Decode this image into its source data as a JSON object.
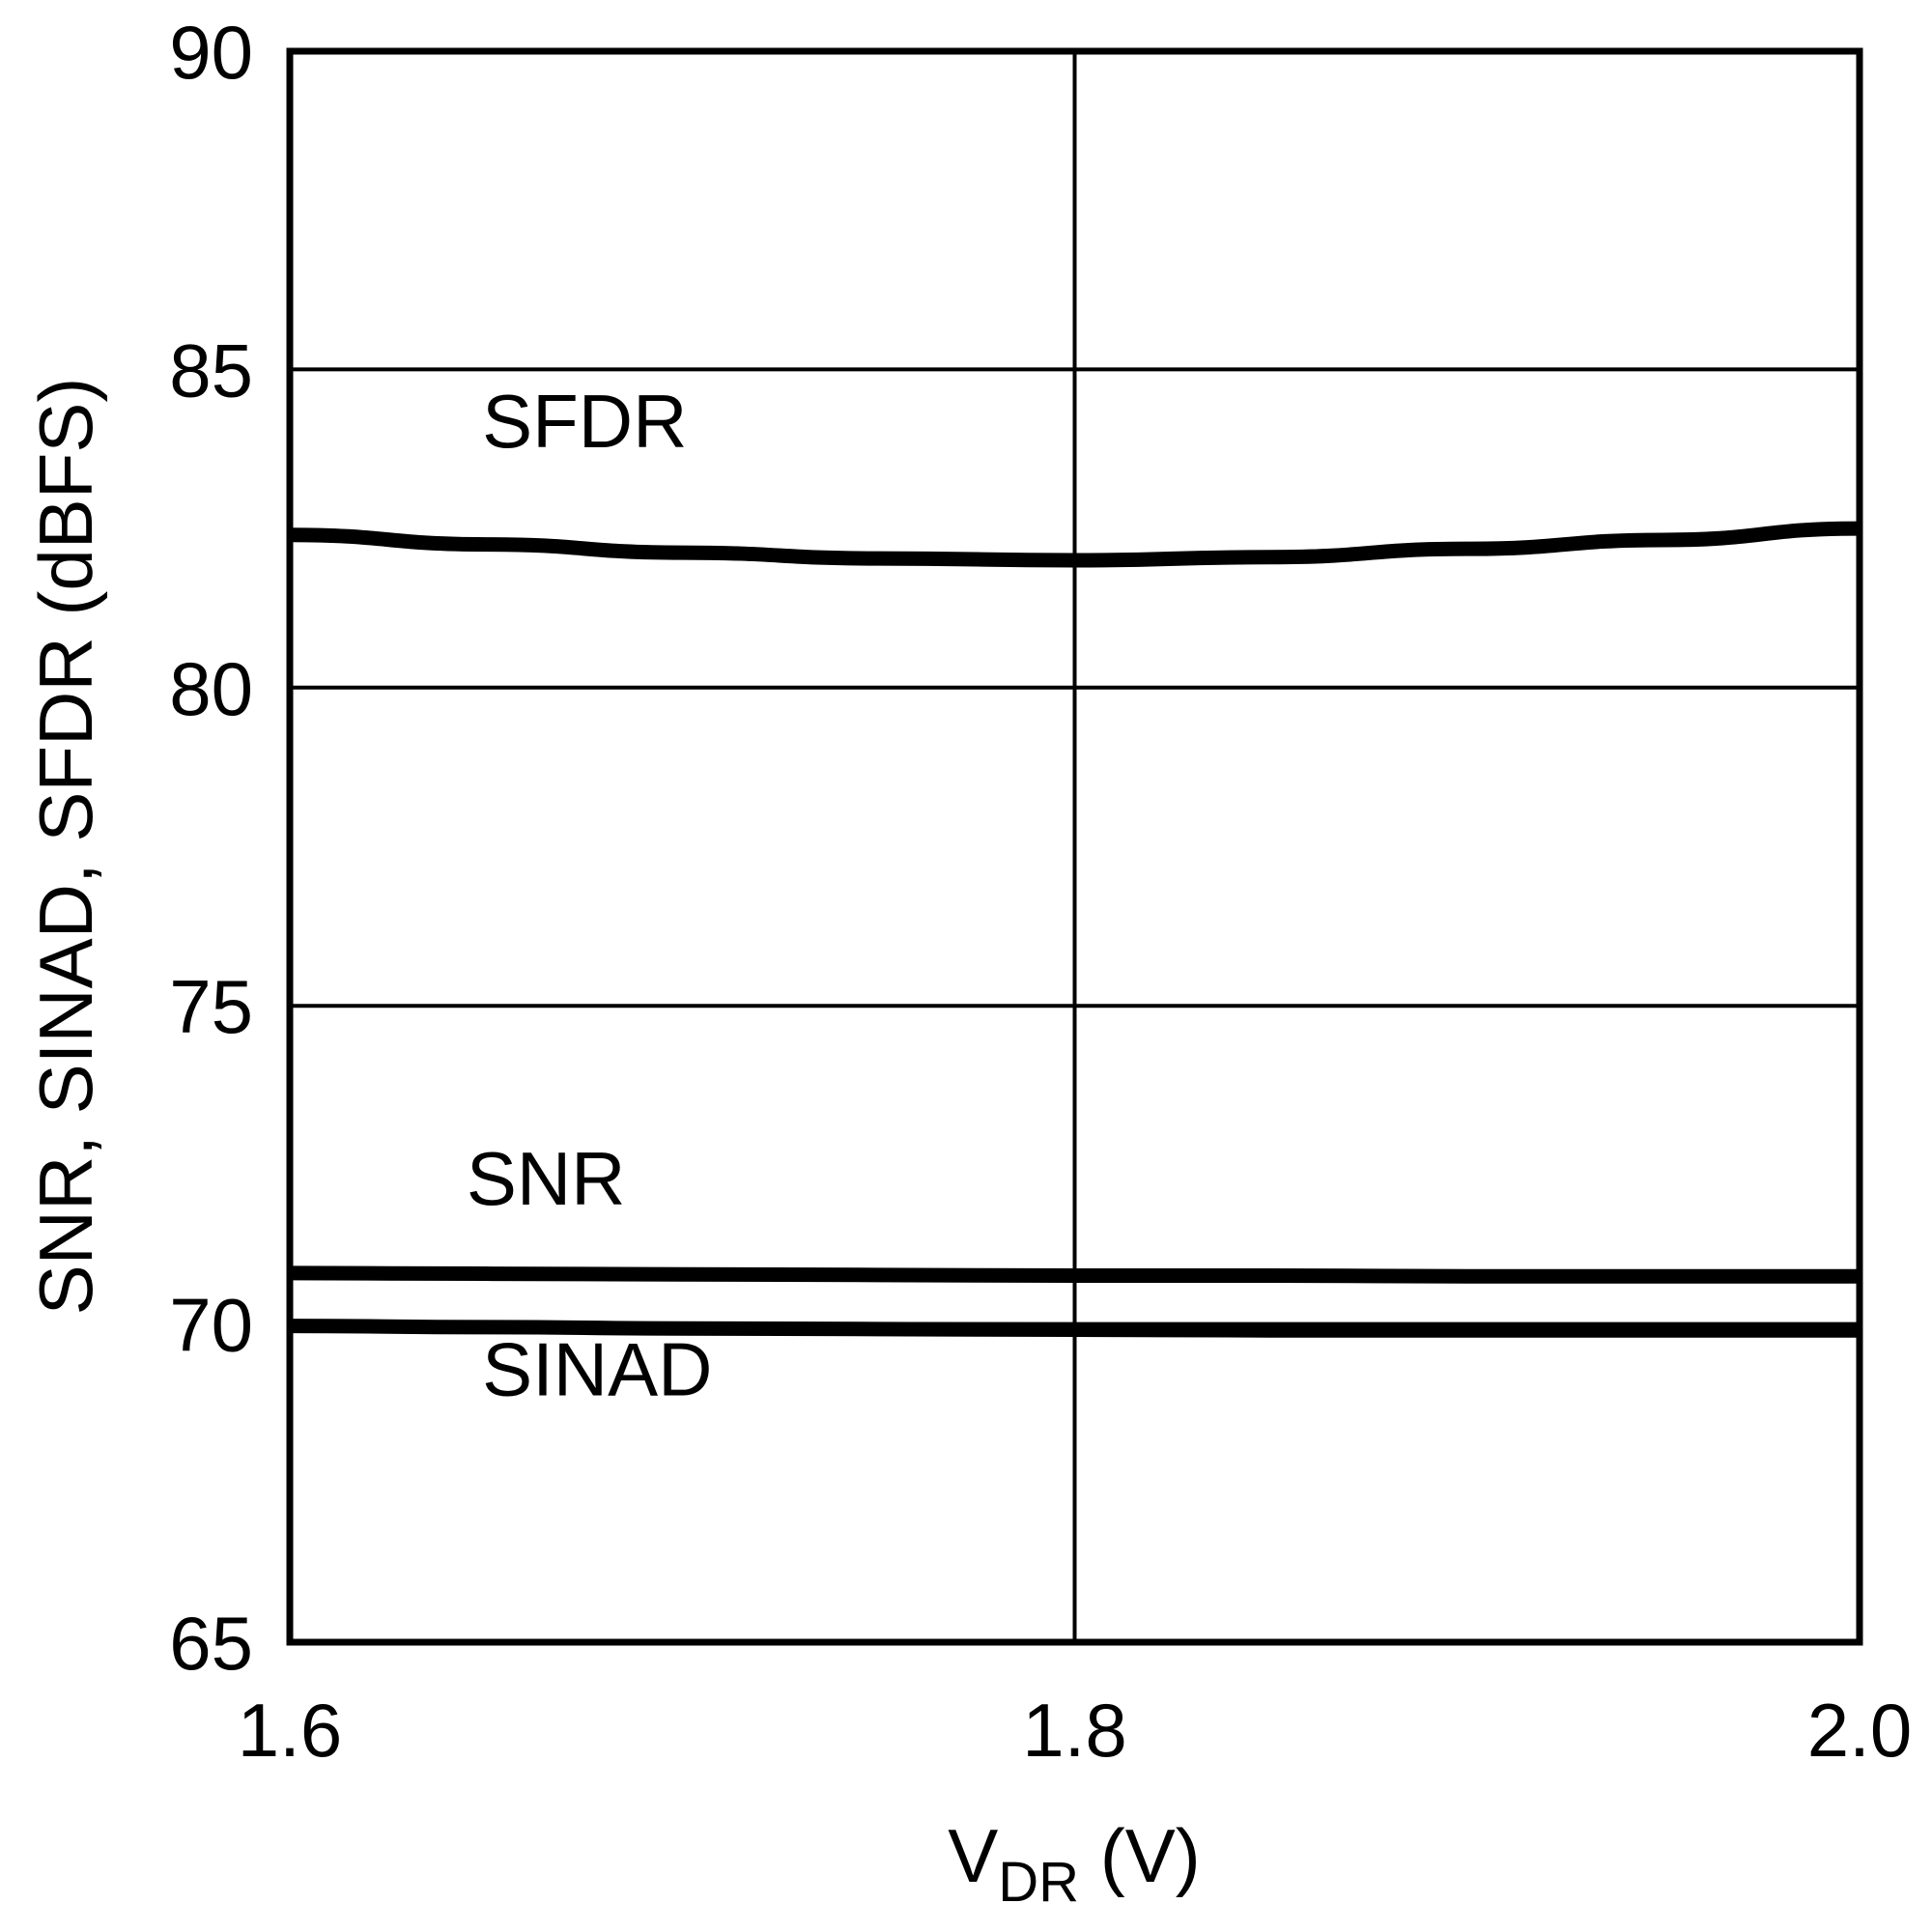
{
  "chart_data": {
    "type": "line",
    "title": "",
    "xlabel": "V_DR (V)",
    "xlabel_main": "V",
    "xlabel_sub": "DR",
    "xlabel_unit": " (V)",
    "ylabel": "SNR, SINAD, SFDR (dBFS)",
    "xlim": [
      1.6,
      2.0
    ],
    "ylim": [
      65,
      90
    ],
    "x_ticks": [
      "1.6",
      "1.8",
      "2.0"
    ],
    "y_ticks": [
      "90",
      "85",
      "80",
      "75",
      "70",
      "65"
    ],
    "grid": true,
    "legend": "inline labels",
    "x": [
      1.6,
      1.65,
      1.7,
      1.75,
      1.8,
      1.85,
      1.9,
      1.95,
      2.0
    ],
    "series": [
      {
        "name": "SFDR",
        "values": [
          82.4,
          82.25,
          82.12,
          82.03,
          82.0,
          82.05,
          82.18,
          82.32,
          82.5
        ]
      },
      {
        "name": "SNR",
        "values": [
          70.8,
          70.79,
          70.78,
          70.77,
          70.76,
          70.76,
          70.75,
          70.75,
          70.75
        ]
      },
      {
        "name": "SINAD",
        "values": [
          69.97,
          69.95,
          69.93,
          69.92,
          69.91,
          69.9,
          69.9,
          69.9,
          69.9
        ]
      }
    ],
    "annotations": [
      {
        "text": "SFDR",
        "x": 1.649,
        "y": 84.2
      },
      {
        "text": "SNR",
        "x": 1.645,
        "y": 72.3
      },
      {
        "text": "SINAD",
        "x": 1.649,
        "y": 69.3
      }
    ]
  }
}
